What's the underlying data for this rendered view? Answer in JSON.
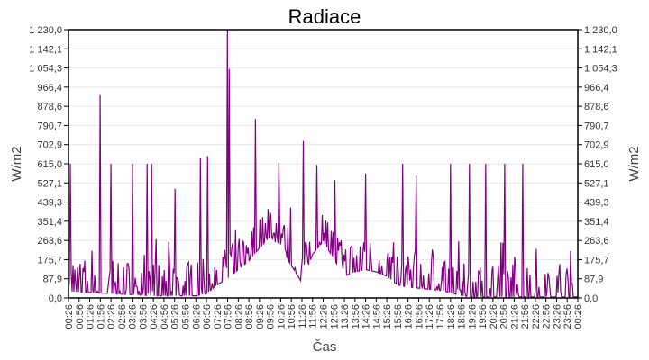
{
  "chart_data": {
    "type": "line",
    "title": "Radiace",
    "xlabel": "Čas",
    "ylabel": "W/m2",
    "ylabel_right": "W/m2",
    "ylim": [
      0,
      1230
    ],
    "grid": true,
    "legend": null,
    "series_color": "#800080",
    "y_ticks": [
      "0,0",
      "87,9",
      "175,7",
      "263,6",
      "351,4",
      "439,3",
      "527,1",
      "615,0",
      "702,9",
      "790,7",
      "878,6",
      "966,4",
      "1 054,3",
      "1 142,1",
      "1 230,0"
    ],
    "y_tick_values": [
      0,
      87.9,
      175.7,
      263.6,
      351.4,
      439.3,
      527.1,
      615.0,
      702.9,
      790.7,
      878.6,
      966.4,
      1054.3,
      1142.1,
      1230.0
    ],
    "x_ticks": [
      "00:26",
      "00:56",
      "01:26",
      "01:56",
      "02:26",
      "02:56",
      "03:26",
      "03:56",
      "04:26",
      "04:56",
      "05:26",
      "05:56",
      "06:26",
      "06:56",
      "07:26",
      "07:56",
      "08:26",
      "08:56",
      "09:26",
      "09:56",
      "10:26",
      "10:56",
      "11:26",
      "11:56",
      "12:26",
      "12:56",
      "13:26",
      "13:56",
      "14:26",
      "14:56",
      "15:26",
      "15:56",
      "16:26",
      "16:56",
      "17:26",
      "17:56",
      "18:26",
      "18:56",
      "19:26",
      "19:56",
      "20:26",
      "20:56",
      "21:26",
      "21:56",
      "22:26",
      "22:56",
      "23:26",
      "23:56",
      "00:26"
    ],
    "series": [
      {
        "name": "Radiace",
        "baseline_x": [
          "00:26",
          "02:26",
          "04:26",
          "06:26",
          "06:56",
          "07:26",
          "07:56",
          "08:26",
          "08:56",
          "09:26",
          "09:56",
          "10:26",
          "10:56",
          "11:26",
          "11:56",
          "12:26",
          "12:56",
          "13:26",
          "13:56",
          "14:26",
          "14:56",
          "15:26",
          "15:56",
          "16:26",
          "16:56",
          "17:26",
          "17:56",
          "18:26",
          "18:56",
          "19:26",
          "20:26",
          "22:26",
          "00:26"
        ],
        "baseline_values": [
          30,
          20,
          10,
          10,
          20,
          60,
          90,
          130,
          170,
          230,
          280,
          230,
          150,
          70,
          200,
          260,
          180,
          100,
          120,
          130,
          120,
          100,
          60,
          50,
          45,
          40,
          35,
          25,
          10,
          5,
          5,
          5,
          5
        ],
        "peaks": [
          {
            "x": "00:30",
            "value": 615
          },
          {
            "x": "01:56",
            "value": 930
          },
          {
            "x": "02:26",
            "value": 615
          },
          {
            "x": "03:26",
            "value": 615
          },
          {
            "x": "04:08",
            "value": 615
          },
          {
            "x": "04:20",
            "value": 615
          },
          {
            "x": "05:26",
            "value": 500
          },
          {
            "x": "06:40",
            "value": 640
          },
          {
            "x": "07:00",
            "value": 650
          },
          {
            "x": "07:56",
            "value": 1230
          },
          {
            "x": "08:00",
            "value": 1050
          },
          {
            "x": "09:14",
            "value": 820
          },
          {
            "x": "10:20",
            "value": 620
          },
          {
            "x": "11:30",
            "value": 720
          },
          {
            "x": "12:08",
            "value": 610
          },
          {
            "x": "13:00",
            "value": 540
          },
          {
            "x": "14:26",
            "value": 570
          },
          {
            "x": "16:10",
            "value": 615
          },
          {
            "x": "16:50",
            "value": 560
          },
          {
            "x": "18:26",
            "value": 615
          },
          {
            "x": "19:20",
            "value": 615
          },
          {
            "x": "20:05",
            "value": 615
          },
          {
            "x": "21:00",
            "value": 615
          },
          {
            "x": "21:50",
            "value": 615
          }
        ]
      }
    ]
  }
}
